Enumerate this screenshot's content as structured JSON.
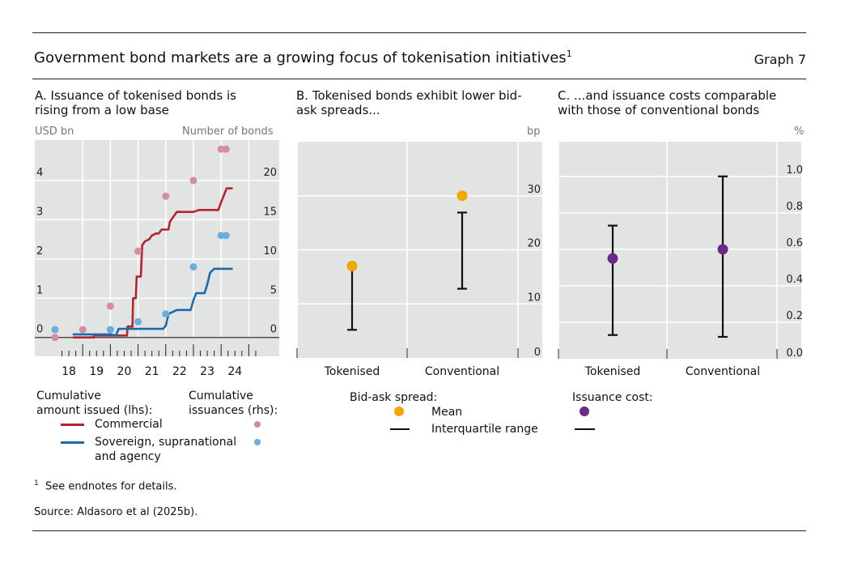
{
  "header": {
    "title": "Government bond markets are a growing focus of tokenisation initiatives",
    "title_sup": "1",
    "graph_label": "Graph 7"
  },
  "colors": {
    "commercial": "#b5232f",
    "sovereign": "#1a6aad",
    "commercial_dot": "#d88ca3",
    "sovereign_dot": "#6aaee0",
    "mean_b": "#f0a800",
    "mean_c": "#6a2a8a",
    "plot_bg": "#e2e3e3"
  },
  "legend_a": {
    "amount_head": "Cumulative\namount issued (lhs):",
    "amount_head_1": "Cumulative",
    "amount_head_2": "amount issued (lhs):",
    "count_head_1": "Cumulative",
    "count_head_2": "issuances (rhs):",
    "commercial": "Commercial",
    "sovereign_1": "Sovereign, supranational",
    "sovereign_2": "and agency"
  },
  "legend_b": {
    "head": "Bid-ask spread:",
    "mean": "Mean",
    "iqr": "Interquartile range"
  },
  "legend_c": {
    "head": "Issuance cost:"
  },
  "footnote": {
    "mark": "1",
    "text": "See endnotes for details."
  },
  "source": "Source: Aldasoro et al (2025b).",
  "chart_data": [
    {
      "type": "line",
      "title": "A. Issuance of tokenised bonds is rising from a low base",
      "ylabel": "USD bn",
      "y2label": "Number of bonds",
      "ylim": [
        -0.48,
        5.03
      ],
      "y2lim": [
        -2.4,
        25.15
      ],
      "xlim": [
        2017.27,
        2026.1
      ],
      "yticks": [
        "0",
        "1",
        "2",
        "3",
        "4"
      ],
      "y2ticks": [
        "0",
        "5",
        "10",
        "15",
        "20"
      ],
      "xticklabels": [
        "18",
        "19",
        "20",
        "21",
        "22",
        "23",
        "24"
      ],
      "series": [
        {
          "name": "Commercial",
          "axis": "lhs",
          "x": [
            2018.64,
            2019.4,
            2019.4,
            2020.6,
            2020.62,
            2020.8,
            2020.82,
            2020.92,
            2020.95,
            2021.1,
            2021.15,
            2021.25,
            2021.4,
            2021.5,
            2021.65,
            2021.75,
            2021.85,
            2022.1,
            2022.15,
            2022.3,
            2022.4,
            2022.5,
            2022.6,
            2022.8,
            2023.0,
            2023.2,
            2023.5,
            2023.6,
            2023.9,
            2024.0,
            2024.2,
            2024.42
          ],
          "y": [
            0,
            0,
            0.05,
            0.05,
            0.28,
            0.28,
            1.0,
            1.0,
            1.55,
            1.55,
            2.35,
            2.45,
            2.5,
            2.6,
            2.65,
            2.65,
            2.75,
            2.75,
            2.95,
            3.1,
            3.2,
            3.2,
            3.2,
            3.2,
            3.2,
            3.25,
            3.25,
            3.25,
            3.25,
            3.45,
            3.8,
            3.8
          ]
        },
        {
          "name": "Sovereign, supranational and agency",
          "axis": "lhs",
          "x": [
            2018.64,
            2020.0,
            2020.2,
            2020.3,
            2021.9,
            2022.0,
            2022.1,
            2022.4,
            2022.9,
            2023.0,
            2023.1,
            2023.4,
            2023.5,
            2023.6,
            2023.75,
            2023.9,
            2024.42
          ],
          "y": [
            0.08,
            0.08,
            0.05,
            0.22,
            0.22,
            0.3,
            0.6,
            0.7,
            0.7,
            0.95,
            1.13,
            1.13,
            1.35,
            1.65,
            1.75,
            1.75,
            1.75
          ]
        },
        {
          "name": "Commercial cumulative issuances",
          "axis": "rhs",
          "type": "scatter",
          "x": [
            2018.0,
            2019.0,
            2020.0,
            2021.0,
            2022.0,
            2023.0,
            2024.0,
            2024.18
          ],
          "y": [
            0,
            1,
            4,
            11,
            18,
            20,
            24,
            24
          ]
        },
        {
          "name": "Sovereign cumulative issuances",
          "axis": "rhs",
          "type": "scatter",
          "x": [
            2018.0,
            2020.0,
            2021.0,
            2022.0,
            2023.0,
            2024.0,
            2024.18
          ],
          "y": [
            1,
            1,
            2,
            3,
            9,
            13,
            13
          ]
        }
      ]
    },
    {
      "type": "errorbar",
      "title": "B. Tokenised bonds exhibit lower bid-ask spreads...",
      "ylabel": "bp",
      "ylim": [
        0,
        40
      ],
      "yticks": [
        "0",
        "10",
        "20",
        "30"
      ],
      "categories": [
        "Tokenised",
        "Conventional"
      ],
      "mean": [
        17,
        30
      ],
      "iqr_low": [
        5.2,
        12.8
      ],
      "iqr_high": [
        17,
        26.9
      ]
    },
    {
      "type": "errorbar",
      "title": "C. ...and issuance costs comparable with those of conventional bonds",
      "ylabel": "%",
      "ylim": [
        0,
        1.19
      ],
      "yticks": [
        "0.0",
        "0.2",
        "0.4",
        "0.6",
        "0.8",
        "1.0"
      ],
      "categories": [
        "Tokenised",
        "Conventional"
      ],
      "mean": [
        0.55,
        0.6
      ],
      "iqr_low": [
        0.13,
        0.12
      ],
      "iqr_high": [
        0.73,
        1.0
      ]
    }
  ]
}
